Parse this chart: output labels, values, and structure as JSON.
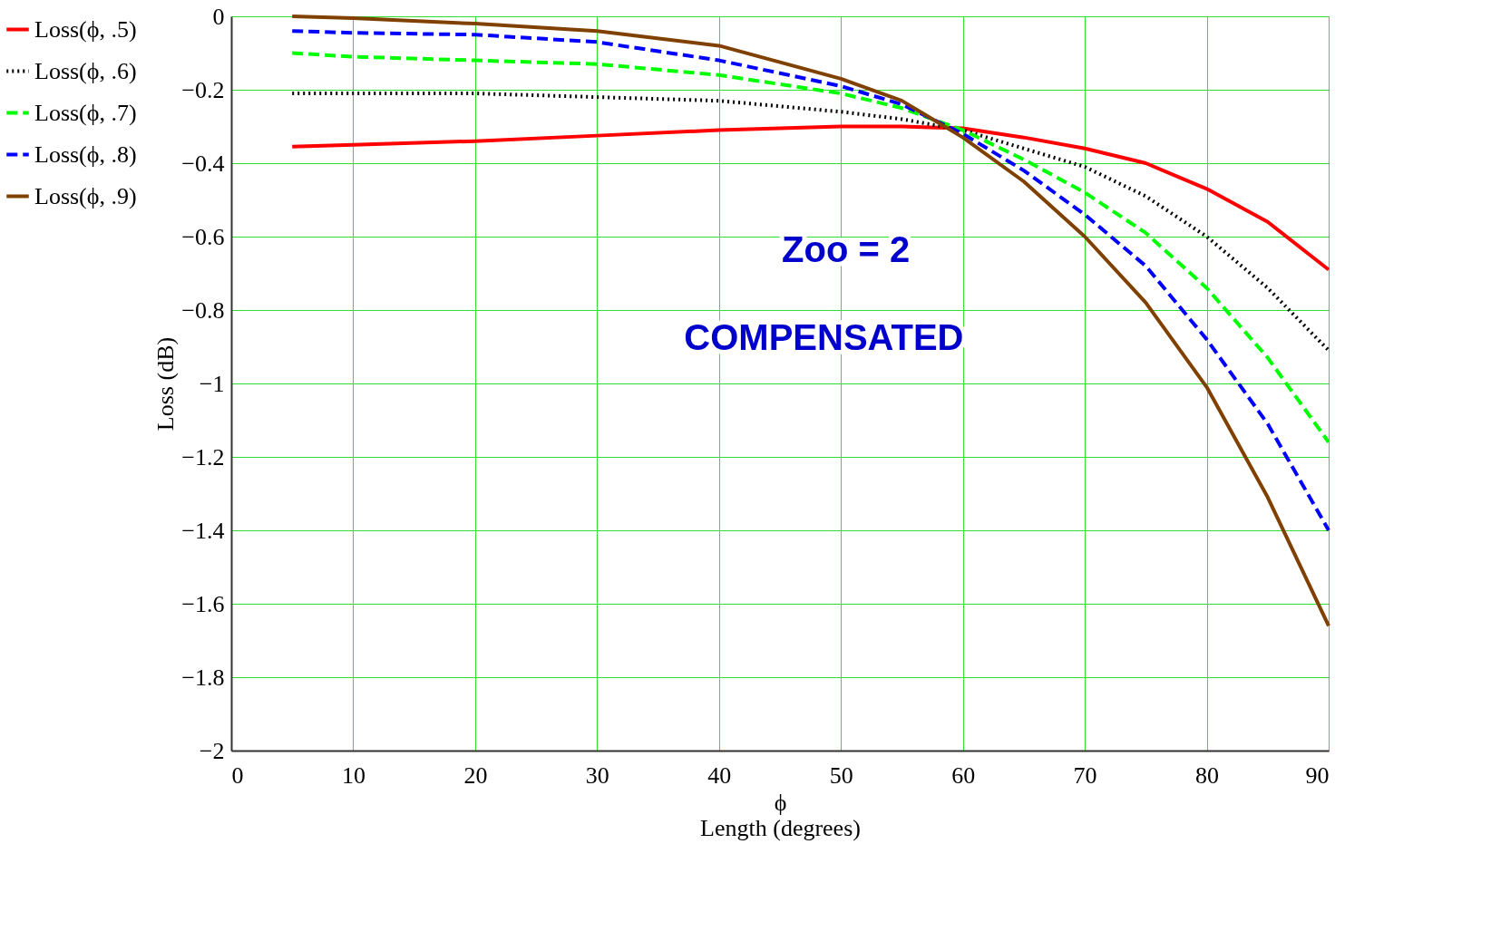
{
  "chart_data": {
    "type": "line",
    "xlabel": "ϕ\nLength (degrees)",
    "ylabel": "Loss (dB)",
    "x": [
      5,
      10,
      20,
      30,
      40,
      50,
      55,
      60,
      65,
      70,
      75,
      80,
      85,
      90
    ],
    "series": [
      {
        "name": "Loss(ϕ, .5)",
        "color": "#ff0000",
        "line_style": "solid",
        "values": [
          -0.355,
          -0.35,
          -0.34,
          -0.325,
          -0.31,
          -0.3,
          -0.3,
          -0.305,
          -0.33,
          -0.36,
          -0.4,
          -0.47,
          -0.56,
          -0.69
        ]
      },
      {
        "name": "Loss(ϕ, .6)",
        "color": "#000000",
        "line_style": "dotted",
        "values": [
          -0.21,
          -0.21,
          -0.21,
          -0.22,
          -0.23,
          -0.26,
          -0.28,
          -0.31,
          -0.36,
          -0.41,
          -0.49,
          -0.6,
          -0.74,
          -0.91
        ]
      },
      {
        "name": "Loss(ϕ, .7)",
        "color": "#00ff00",
        "line_style": "dashed",
        "values": [
          -0.1,
          -0.11,
          -0.12,
          -0.13,
          -0.16,
          -0.21,
          -0.25,
          -0.31,
          -0.39,
          -0.48,
          -0.59,
          -0.74,
          -0.93,
          -1.16
        ]
      },
      {
        "name": "Loss(ϕ, .8)",
        "color": "#0000ff",
        "line_style": "dashed",
        "values": [
          -0.04,
          -0.045,
          -0.05,
          -0.07,
          -0.12,
          -0.19,
          -0.24,
          -0.32,
          -0.42,
          -0.54,
          -0.68,
          -0.88,
          -1.11,
          -1.4
        ]
      },
      {
        "name": "Loss(ϕ, .9)",
        "color": "#804000",
        "line_style": "solid",
        "values": [
          0,
          -0.005,
          -0.02,
          -0.04,
          -0.08,
          -0.17,
          -0.23,
          -0.33,
          -0.45,
          -0.6,
          -0.78,
          -1.01,
          -1.31,
          -1.66
        ]
      }
    ],
    "xlim": [
      0,
      90
    ],
    "xticks": [
      0,
      10,
      20,
      30,
      40,
      50,
      60,
      70,
      80,
      90
    ],
    "ylim": [
      -2,
      0
    ],
    "yticks": [
      {
        "value": 0,
        "label": "0"
      },
      {
        "value": -0.2,
        "label": "−0.2"
      },
      {
        "value": -0.4,
        "label": "−0.4"
      },
      {
        "value": -0.6,
        "label": "−0.6"
      },
      {
        "value": -0.8,
        "label": "−0.8"
      },
      {
        "value": -1,
        "label": "−1"
      },
      {
        "value": -1.2,
        "label": "−1.2"
      },
      {
        "value": -1.4,
        "label": "−1.4"
      },
      {
        "value": -1.6,
        "label": "−1.6"
      },
      {
        "value": -1.8,
        "label": "−1.8"
      },
      {
        "value": -2,
        "label": "−2"
      }
    ],
    "grid": true,
    "legend": "left",
    "marker": "none",
    "annotations": [
      "Zoo = 2",
      "COMPENSATED"
    ]
  }
}
